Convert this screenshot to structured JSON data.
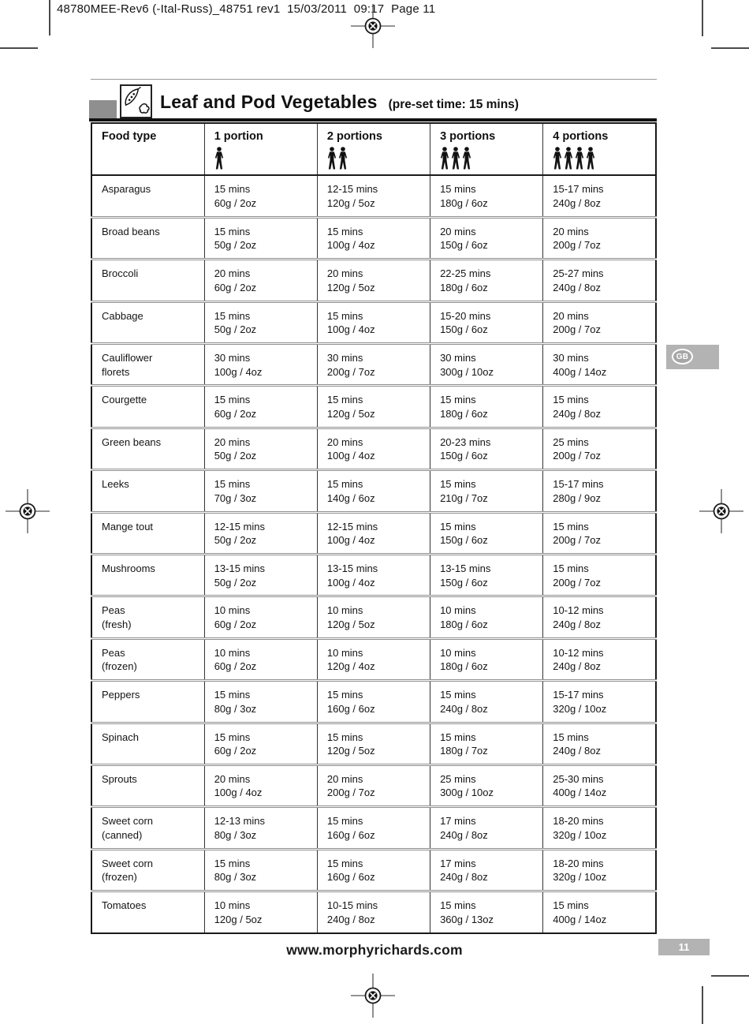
{
  "page": {
    "header_text": "48780MEE-Rev6 (-Ital-Russ)_48751 rev1  15/03/2011  09:17  Page 11",
    "footer_url": "www.morphyrichards.com",
    "page_number": "11",
    "language_badge": "GB"
  },
  "section": {
    "title": "Leaf and Pod Vegetables",
    "subtitle": "(pre-set time: 15 mins)",
    "icon": "pod-and-leaf-icon"
  },
  "colors": {
    "badge_gray": "#b3b3b3",
    "rule_black": "#111111",
    "row_divider_gray": "#8f8f8f"
  },
  "table": {
    "columns": [
      {
        "label": "Food type",
        "persons": 0
      },
      {
        "label": "1 portion",
        "persons": 1
      },
      {
        "label": "2 portions",
        "persons": 2
      },
      {
        "label": "3 portions",
        "persons": 3
      },
      {
        "label": "4 portions",
        "persons": 4
      }
    ],
    "rows": [
      {
        "food": "Asparagus",
        "cells": [
          "15 mins\n60g / 2oz",
          "12-15 mins\n120g / 5oz",
          "15 mins\n180g / 6oz",
          "15-17 mins\n240g / 8oz"
        ]
      },
      {
        "food": "Broad beans",
        "cells": [
          "15 mins\n50g / 2oz",
          "15 mins\n100g / 4oz",
          "20 mins\n150g / 6oz",
          "20 mins\n200g / 7oz"
        ]
      },
      {
        "food": "Broccoli",
        "cells": [
          "20 mins\n60g / 2oz",
          "20 mins\n120g / 5oz",
          "22-25 mins\n180g / 6oz",
          "25-27 mins\n240g / 8oz"
        ]
      },
      {
        "food": "Cabbage",
        "cells": [
          "15 mins\n50g / 2oz",
          "15 mins\n100g / 4oz",
          "15-20 mins\n150g / 6oz",
          "20 mins\n200g / 7oz"
        ]
      },
      {
        "food": "Cauliflower\nflorets",
        "cells": [
          "30 mins\n100g / 4oz",
          "30 mins\n200g / 7oz",
          "30 mins\n300g / 10oz",
          "30 mins\n400g / 14oz"
        ]
      },
      {
        "food": "Courgette",
        "cells": [
          "15 mins\n60g / 2oz",
          "15 mins\n120g / 5oz",
          "15 mins\n180g / 6oz",
          "15 mins\n240g / 8oz"
        ]
      },
      {
        "food": "Green beans",
        "cells": [
          "20 mins\n50g / 2oz",
          "20 mins\n100g / 4oz",
          "20-23 mins\n150g / 6oz",
          "25 mins\n200g / 7oz"
        ]
      },
      {
        "food": "Leeks",
        "cells": [
          "15 mins\n70g / 3oz",
          "15 mins\n140g / 6oz",
          "15 mins\n210g / 7oz",
          "15-17 mins\n280g / 9oz"
        ]
      },
      {
        "food": "Mange tout",
        "cells": [
          "12-15 mins\n50g / 2oz",
          "12-15 mins\n100g / 4oz",
          "15 mins\n150g / 6oz",
          "15 mins\n200g / 7oz"
        ]
      },
      {
        "food": "Mushrooms",
        "cells": [
          "13-15 mins\n50g / 2oz",
          "13-15 mins\n100g / 4oz",
          "13-15 mins\n150g / 6oz",
          "15 mins\n200g / 7oz"
        ]
      },
      {
        "food": "Peas\n(fresh)",
        "cells": [
          "10 mins\n60g / 2oz",
          "10 mins\n120g / 5oz",
          "10 mins\n180g / 6oz",
          "10-12 mins\n240g / 8oz"
        ]
      },
      {
        "food": "Peas\n(frozen)",
        "cells": [
          "10 mins\n60g / 2oz",
          "10 mins\n120g / 4oz",
          "10 mins\n180g / 6oz",
          "10-12 mins\n240g / 8oz"
        ]
      },
      {
        "food": "Peppers",
        "cells": [
          "15 mins\n80g / 3oz",
          "15 mins\n160g / 6oz",
          "15 mins\n240g / 8oz",
          "15-17 mins\n320g / 10oz"
        ]
      },
      {
        "food": "Spinach",
        "cells": [
          "15 mins\n60g / 2oz",
          "15 mins\n120g / 5oz",
          "15 mins\n180g / 7oz",
          "15 mins\n240g / 8oz"
        ]
      },
      {
        "food": "Sprouts",
        "cells": [
          "20 mins\n100g / 4oz",
          "20 mins\n200g / 7oz",
          "25 mins\n300g / 10oz",
          "25-30 mins\n400g / 14oz"
        ]
      },
      {
        "food": "Sweet corn\n(canned)",
        "cells": [
          "12-13 mins\n80g / 3oz",
          "15 mins\n160g / 6oz",
          "17 mins\n240g / 8oz",
          "18-20 mins\n320g / 10oz"
        ]
      },
      {
        "food": "Sweet corn\n(frozen)",
        "cells": [
          "15 mins\n80g / 3oz",
          "15 mins\n160g / 6oz",
          "17 mins\n240g / 8oz",
          "18-20 mins\n320g / 10oz"
        ]
      },
      {
        "food": "Tomatoes",
        "cells": [
          "10 mins\n120g / 5oz",
          "10-15 mins\n240g / 8oz",
          "15 mins\n360g / 13oz",
          "15 mins\n400g / 14oz"
        ]
      }
    ]
  }
}
